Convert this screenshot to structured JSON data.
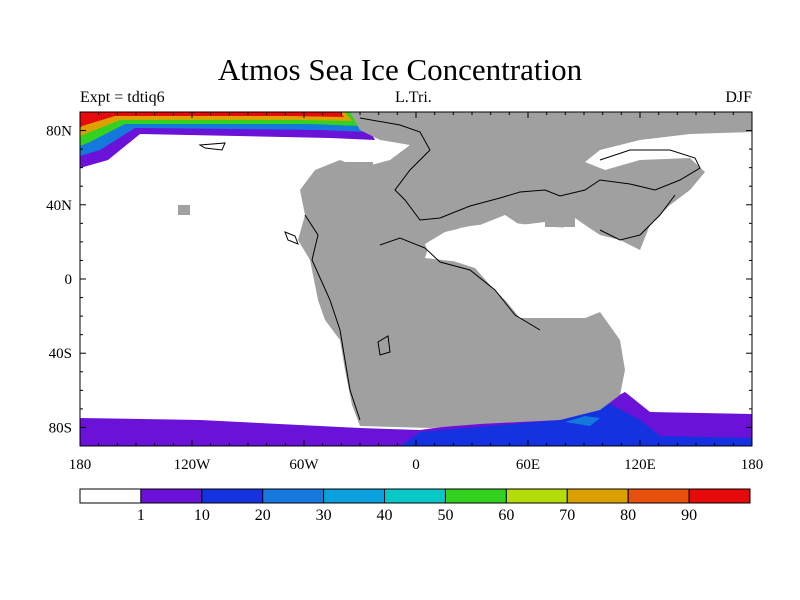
{
  "title": "Atmos Sea Ice Concentration",
  "subtitle_left": "Expt = tdtiq6",
  "subtitle_center": "L.Tri.",
  "subtitle_right": "DJF",
  "lon_ticks": [
    "180",
    "120W",
    "60W",
    "0",
    "60E",
    "120E",
    "180"
  ],
  "lat_ticks": [
    "80N",
    "40N",
    "0",
    "40S",
    "80S"
  ],
  "land_color": "#a0a0a0",
  "colorbar": {
    "labels": [
      "1",
      "10",
      "20",
      "30",
      "40",
      "50",
      "60",
      "70",
      "80",
      "90"
    ],
    "colors": [
      "#ffffff",
      "#6a12d8",
      "#1432e0",
      "#1478dc",
      "#0aa0dc",
      "#0ac8c8",
      "#32d21e",
      "#b4dc0a",
      "#dca000",
      "#e6500a",
      "#e60a0a"
    ]
  }
}
